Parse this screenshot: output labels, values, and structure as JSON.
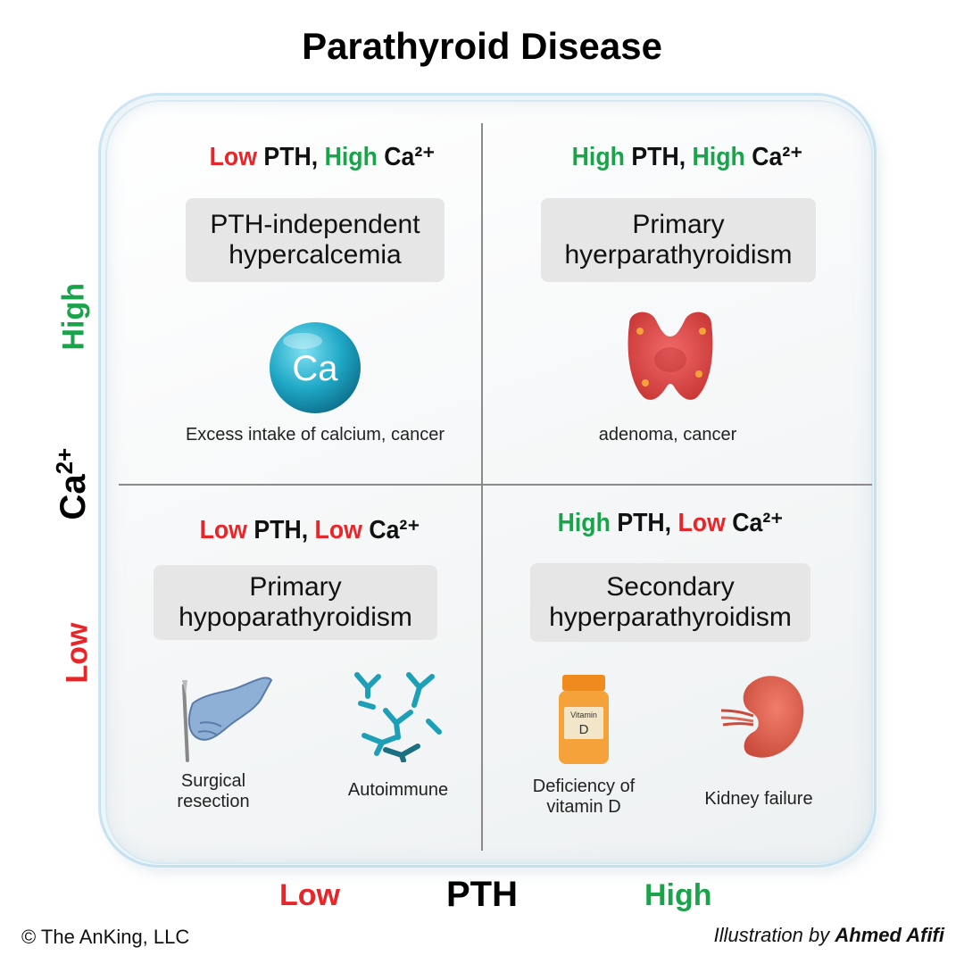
{
  "title": "Parathyroid Disease",
  "axes": {
    "x_label": "PTH",
    "x_low": "Low",
    "x_high": "High",
    "y_label": "Ca",
    "y_label_sup": "2+",
    "y_low": "Low",
    "y_high": "High"
  },
  "quadrants": {
    "top_left": {
      "head": {
        "w1": "Low",
        "w2": "PTH,",
        "w3": "High",
        "w4": "Ca²⁺"
      },
      "box_line1": "PTH-independent",
      "box_line2": "hypercalcemia",
      "icon_text": "Ca",
      "caption": "Excess intake of calcium, cancer"
    },
    "top_right": {
      "head": {
        "w1": "High",
        "w2": "PTH,",
        "w3": "High",
        "w4": "Ca²⁺"
      },
      "box_line1": "Primary",
      "box_line2": "hyerparathyroidism",
      "caption": "adenoma, cancer"
    },
    "bottom_left": {
      "head": {
        "w1": "Low",
        "w2": "PTH,",
        "w3": "Low",
        "w4": "Ca²⁺"
      },
      "box_line1": "Primary",
      "box_line2": "hypoparathyroidism",
      "caption_left_1": "Surgical",
      "caption_left_2": "resection",
      "caption_right": "Autoimmune"
    },
    "bottom_right": {
      "head": {
        "w1": "High",
        "w2": "PTH,",
        "w3": "Low",
        "w4": "Ca²⁺"
      },
      "box_line1": "Secondary",
      "box_line2": "hyperparathyroidism",
      "bottle_label_1": "Vitamin",
      "bottle_label_2": "D",
      "caption_left_1": "Deficiency of",
      "caption_left_2": "vitamin D",
      "caption_right": "Kidney failure"
    }
  },
  "footer": {
    "copyright": "© The AnKing, LLC",
    "credit_prefix": "Illustration by",
    "credit_name": "Ahmed Afifi"
  },
  "colors": {
    "low": "#e8262a",
    "high": "#19a34a",
    "box": "#e6e6e6",
    "divider": "#8a8a8a"
  }
}
